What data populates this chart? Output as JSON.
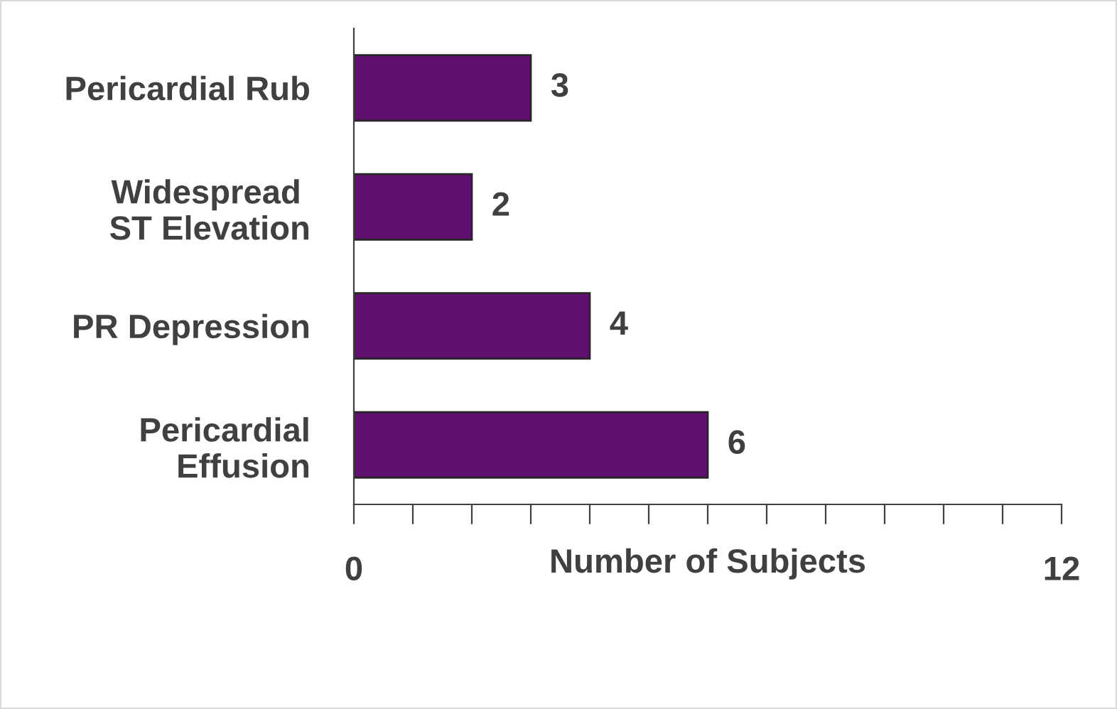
{
  "chart_data": {
    "type": "bar",
    "orientation": "horizontal",
    "categories": [
      "Pericardial Rub",
      "Widespread \nST Elevation",
      "PR Depression",
      "Pericardial\nEffusion"
    ],
    "values": [
      3,
      2,
      4,
      6
    ],
    "color": "#5f1070",
    "data_labels": true,
    "xlabel": "Number of Subjects",
    "xlim": [
      0,
      12
    ],
    "xticks": [
      0,
      {
        "value": 1,
        "label": null
      },
      {
        "value": 2,
        "label": null
      },
      {
        "value": 3,
        "label": null
      },
      {
        "value": 4,
        "label": null
      },
      {
        "value": 5,
        "label": null
      },
      {
        "value": 6,
        "label": null
      },
      {
        "value": 7,
        "label": null
      },
      {
        "value": 8,
        "label": null
      },
      {
        "value": 9,
        "label": null
      },
      {
        "value": 10,
        "label": null
      },
      {
        "value": 11,
        "label": null
      },
      12
    ],
    "grid": false,
    "legend": false
  }
}
